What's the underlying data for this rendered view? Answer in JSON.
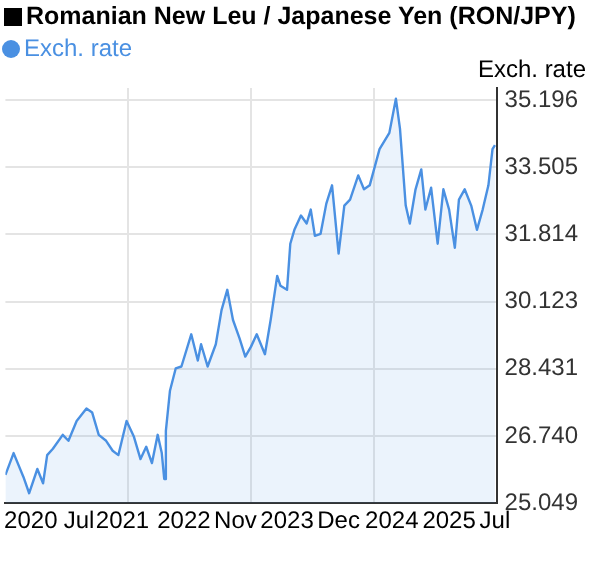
{
  "chart_data": {
    "type": "area",
    "title": "Romanian New Leu / Japanese Yen (RON/JPY)",
    "ylabel": "Exch. rate",
    "legend": "top left",
    "grid": true,
    "xlim": [
      2019.6,
      2025.6
    ],
    "ylim": [
      25.049,
      35.5
    ],
    "xticks": [
      {
        "value": 2019.91,
        "label": "2020"
      },
      {
        "value": 2020.5,
        "label": "Jul"
      },
      {
        "value": 2021.03,
        "label": "2021"
      },
      {
        "value": 2021.1,
        "label": null
      },
      {
        "value": 2021.78,
        "label": "2022"
      },
      {
        "value": 2022.41,
        "label": "Nov"
      },
      {
        "value": 2022.6,
        "label": null
      },
      {
        "value": 2023.04,
        "label": "2023"
      },
      {
        "value": 2023.67,
        "label": "Dec"
      },
      {
        "value": 2024.1,
        "label": null
      },
      {
        "value": 2024.32,
        "label": "2024"
      },
      {
        "value": 2025.02,
        "label": "2025"
      },
      {
        "value": 2025.58,
        "label": "Jul"
      }
    ],
    "yticks": [
      25.049,
      {
        "value": 26.74,
        "label": "26.740"
      },
      28.431,
      30.123,
      31.814,
      33.505,
      35.196
    ],
    "series": [
      {
        "name": "Exch. rate",
        "color": "#4a90e2",
        "x": [
          2019.6,
          2019.7,
          2019.82,
          2019.89,
          2019.99,
          2020.06,
          2020.11,
          2020.18,
          2020.3,
          2020.37,
          2020.47,
          2020.59,
          2020.66,
          2020.74,
          2020.83,
          2020.91,
          2020.98,
          2021.08,
          2021.17,
          2021.25,
          2021.32,
          2021.39,
          2021.46,
          2021.51,
          2021.54,
          2021.56,
          2021.61,
          2021.68,
          2021.75,
          2021.87,
          2021.95,
          2021.99,
          2022.07,
          2022.17,
          2022.24,
          2022.31,
          2022.38,
          2022.46,
          2022.53,
          2022.6,
          2022.67,
          2022.77,
          2022.84,
          2022.92,
          2022.96,
          2023.04,
          2023.08,
          2023.13,
          2023.21,
          2023.28,
          2023.33,
          2023.38,
          2023.45,
          2023.52,
          2023.59,
          2023.67,
          2023.74,
          2023.81,
          2023.91,
          2023.98,
          2024.05,
          2024.17,
          2024.29,
          2024.37,
          2024.42,
          2024.49,
          2024.54,
          2024.61,
          2024.68,
          2024.73,
          2024.8,
          2024.88,
          2024.95,
          2025.02,
          2025.09,
          2025.14,
          2025.21,
          2025.29,
          2025.36,
          2025.43,
          2025.5,
          2025.55,
          2025.58
        ],
        "values": [
          25.76,
          26.31,
          25.71,
          25.3,
          25.91,
          25.55,
          26.26,
          26.42,
          26.77,
          26.62,
          27.12,
          27.43,
          27.33,
          26.77,
          26.62,
          26.37,
          26.26,
          27.12,
          26.72,
          26.16,
          26.47,
          26.06,
          26.77,
          26.31,
          25.66,
          26.87,
          27.88,
          28.44,
          28.49,
          29.3,
          28.64,
          29.05,
          28.49,
          29.05,
          29.91,
          30.42,
          29.66,
          29.2,
          28.74,
          28.99,
          29.3,
          28.8,
          29.66,
          30.77,
          30.52,
          30.42,
          31.58,
          31.93,
          32.29,
          32.09,
          32.44,
          31.78,
          31.83,
          32.59,
          33.05,
          31.33,
          32.54,
          32.69,
          33.3,
          32.95,
          33.05,
          33.96,
          34.37,
          35.23,
          34.47,
          32.54,
          32.09,
          32.95,
          33.45,
          32.44,
          32.99,
          31.58,
          32.95,
          32.44,
          31.48,
          32.69,
          32.95,
          32.54,
          31.93,
          32.44,
          33.05,
          33.96,
          34.06
        ]
      }
    ]
  }
}
